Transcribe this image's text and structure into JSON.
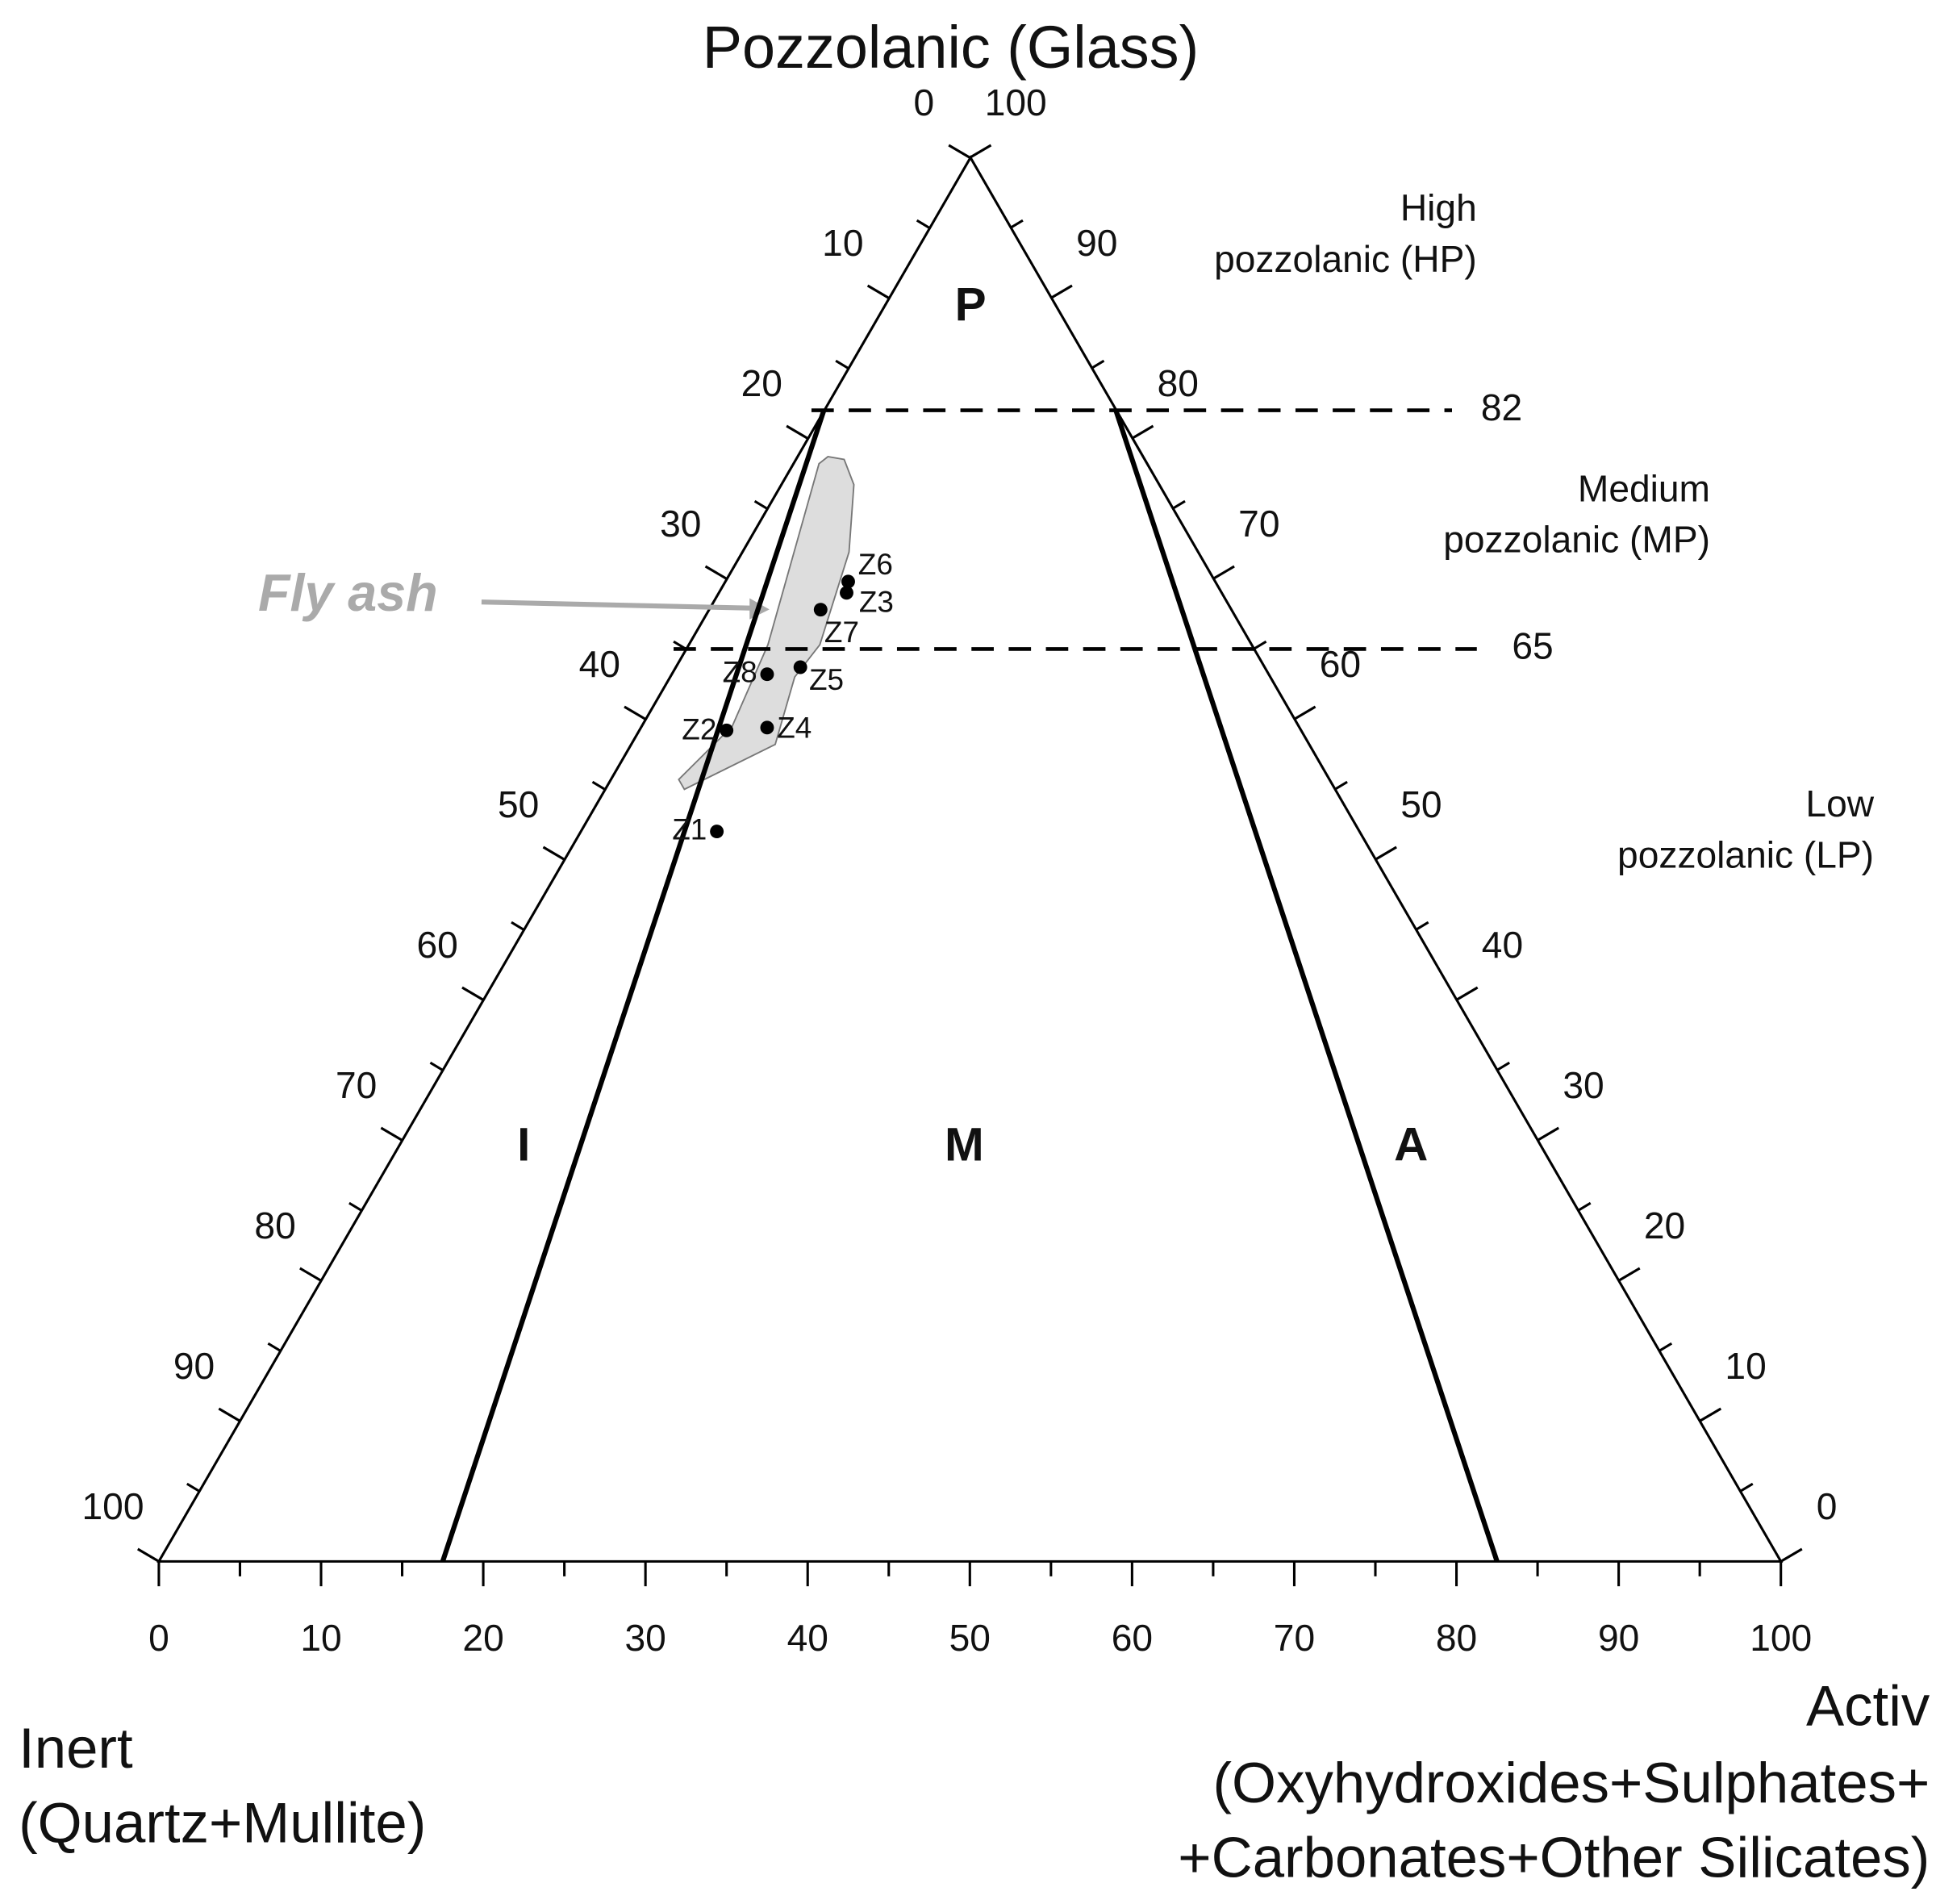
{
  "chart_data": {
    "type": "ternary",
    "title": "Pozzolanic (Glass)",
    "inert_label": [
      "Inert",
      "(Quartz+Mullite)"
    ],
    "activ_label": [
      "Activ",
      "(Oxyhydroxides+Sulphates+",
      "+Carbonates+Other Silicates)"
    ],
    "activ_ticks": [
      0,
      10,
      20,
      30,
      40,
      50,
      60,
      70,
      80,
      90,
      100
    ],
    "inert_ticks": [
      0,
      10,
      20,
      30,
      40,
      50,
      60,
      70,
      80,
      90,
      100
    ],
    "pozzolanic_ticks": [
      0,
      10,
      20,
      30,
      40,
      50,
      60,
      70,
      80,
      90,
      100
    ],
    "minor_ticks": [
      5,
      15,
      25,
      35,
      45,
      55,
      65,
      75,
      85,
      95
    ],
    "thresholds": [
      82,
      65
    ],
    "zones": [
      [
        "High",
        "pozzolanic (HP)"
      ],
      [
        "Medium",
        "pozzolanic (MP)"
      ],
      [
        "Low",
        "pozzolanic (LP)"
      ]
    ],
    "regions": [
      "P",
      "I",
      "M",
      "A"
    ],
    "boundaries": [
      {
        "pozzolanic": [
          82,
          0
        ],
        "activ": [
          0,
          17.5
        ]
      },
      {
        "pozzolanic": [
          82,
          0
        ],
        "activ": [
          18,
          82.5
        ]
      }
    ],
    "fly_ash": {
      "label": "Fly ash",
      "color": "#dddddd",
      "pozzolanic": [
        55.7,
        59.5,
        65.3,
        78.2,
        78.7,
        78.5,
        76.7,
        71.9,
        65.3,
        63.0,
        58.2,
        55.0
      ],
      "activ": [
        4.2,
        5.6,
        4.9,
        1.6,
        1.9,
        3.0,
        4.5,
        6.6,
        8.1,
        7.7,
        8.9,
        4.9
      ]
    },
    "point_color": "#000000",
    "points": [
      {
        "label": "Z1",
        "pozzolanic": 52.0,
        "activ": 8.4
      },
      {
        "label": "Z2",
        "pozzolanic": 59.2,
        "activ": 5.4
      },
      {
        "label": "Z3",
        "pozzolanic": 69.0,
        "activ": 7.9
      },
      {
        "label": "Z4",
        "pozzolanic": 59.4,
        "activ": 7.8
      },
      {
        "label": "Z5",
        "pozzolanic": 63.7,
        "activ": 7.7
      },
      {
        "label": "Z6",
        "pozzolanic": 69.8,
        "activ": 7.6
      },
      {
        "label": "Z7",
        "pozzolanic": 67.8,
        "activ": 6.9
      },
      {
        "label": "Z8",
        "pozzolanic": 63.2,
        "activ": 5.9
      }
    ]
  }
}
